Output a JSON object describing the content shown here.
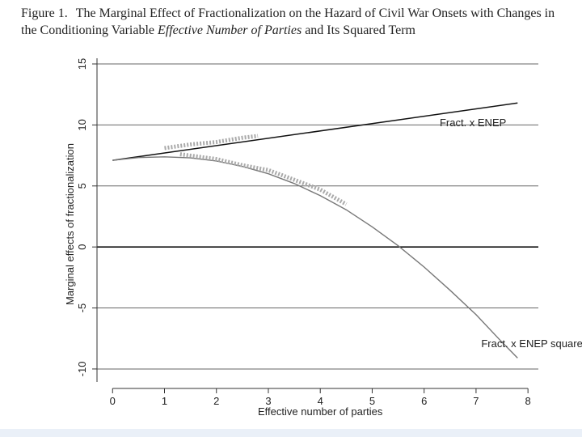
{
  "figure": {
    "label": "Figure 1.",
    "title_part1": "The Marginal Effect of Fractionalization on the Hazard of Civil War Onsets with Changes in the Conditioning Variable ",
    "title_italic": "Effective Number of Parties",
    "title_part2": " and Its Squared Term"
  },
  "chart_data": {
    "type": "line",
    "xlabel": "Effective number of parties",
    "ylabel": "Marginal effects of fractionalization",
    "xlim": [
      -0.3,
      8.2
    ],
    "ylim": [
      -10.8,
      15.2
    ],
    "x_ticks": [
      0,
      1,
      2,
      3,
      4,
      5,
      6,
      7,
      8
    ],
    "y_ticks": [
      -10,
      -5,
      0,
      5,
      10,
      15
    ],
    "grid": "horizontal",
    "zero_line": true,
    "series": [
      {
        "name": "Fract. x ENEP",
        "style": "solid",
        "color": "#111111",
        "x": [
          0,
          7.8
        ],
        "y": [
          7.1,
          11.8
        ],
        "label_at": [
          6.3,
          9.9
        ]
      },
      {
        "name": "Fract. x ENEP squared",
        "style": "solid",
        "color": "#777777",
        "x": [
          0,
          0.5,
          1,
          1.5,
          2,
          2.5,
          3,
          3.5,
          4,
          4.5,
          5,
          5.5,
          6,
          6.5,
          7,
          7.5,
          7.8
        ],
        "y": [
          7.1,
          7.33,
          7.39,
          7.3,
          7.05,
          6.6,
          6.0,
          5.2,
          4.2,
          3.05,
          1.65,
          0.1,
          -1.65,
          -3.55,
          -5.55,
          -7.8,
          -9.1
        ],
        "label_at": [
          7.1,
          -8.2
        ]
      },
      {
        "name": "",
        "style": "dotted",
        "color": "#aaaaaa",
        "x": [
          1.0,
          1.5,
          2.0,
          2.5,
          2.8
        ],
        "y": [
          8.1,
          8.4,
          8.6,
          8.95,
          9.1
        ]
      },
      {
        "name": "",
        "style": "dotted",
        "color": "#aaaaaa",
        "x": [
          1.3,
          2.0,
          2.5,
          3.0,
          3.5,
          4.0,
          4.5
        ],
        "y": [
          7.6,
          7.2,
          6.7,
          6.3,
          5.5,
          4.7,
          3.5
        ]
      }
    ]
  }
}
